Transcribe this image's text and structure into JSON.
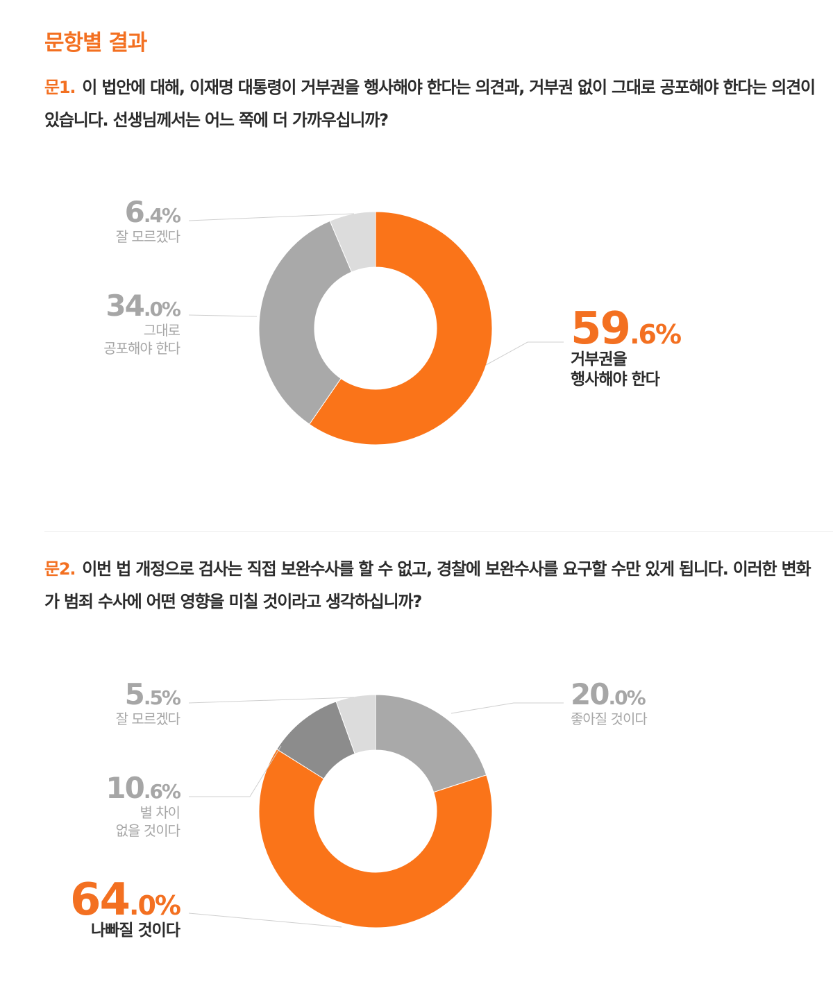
{
  "section_title": "문항별 결과",
  "questions": [
    {
      "number": "문1.",
      "text": "이 법안에 대해, 이재명 대통령이 거부권을 행사해야 한다는 의견과, 거부권 없이 그대로 공포해야 한다는 의견이 있습니다. 선생님께서는 어느 쪽에 더 가까우십니까?"
    },
    {
      "number": "문2.",
      "text": "이번 법 개정으로 검사는 직접 보완수사를 할 수 없고, 경찰에 보완수사를 요구할 수만 있게 됩니다. 이러한 변화가 범죄 수사에 어떤 영향을 미칠 것이라고 생각하십니까?"
    }
  ],
  "colors": {
    "accent": "#f37021",
    "orange_slice": "#fa7419",
    "gray_mid": "#a9a9a9",
    "gray_dark": "#8c8c8c",
    "gray_light": "#dcdcdc",
    "label_gray": "#a6a6a6",
    "label_dark": "#2b2b2b"
  },
  "chart_data": [
    {
      "type": "pie",
      "donut": true,
      "slices": [
        {
          "int": "59",
          "dec": ".6%",
          "value": 59.6,
          "label": [
            "거부권을",
            "행사해야 한다"
          ],
          "color": "#fa7419",
          "emphasis": true
        },
        {
          "int": "34",
          "dec": ".0%",
          "value": 34.0,
          "label": [
            "그대로",
            "공포해야 한다"
          ],
          "color": "#a9a9a9",
          "emphasis": false
        },
        {
          "int": "6",
          "dec": ".4%",
          "value": 6.4,
          "label": [
            "잘 모르겠다"
          ],
          "color": "#dcdcdc",
          "emphasis": false
        }
      ]
    },
    {
      "type": "pie",
      "donut": true,
      "slices": [
        {
          "int": "20",
          "dec": ".0%",
          "value": 20.0,
          "label": [
            "좋아질 것이다"
          ],
          "color": "#a9a9a9",
          "emphasis": false
        },
        {
          "int": "64",
          "dec": ".0%",
          "value": 64.0,
          "label": [
            "나빠질 것이다"
          ],
          "color": "#fa7419",
          "emphasis": true
        },
        {
          "int": "10",
          "dec": ".6%",
          "value": 10.6,
          "label": [
            "별 차이",
            "없을 것이다"
          ],
          "color": "#8c8c8c",
          "emphasis": false
        },
        {
          "int": "5",
          "dec": ".5%",
          "value": 5.5,
          "label": [
            "잘 모르겠다"
          ],
          "color": "#dcdcdc",
          "emphasis": false
        }
      ]
    }
  ]
}
